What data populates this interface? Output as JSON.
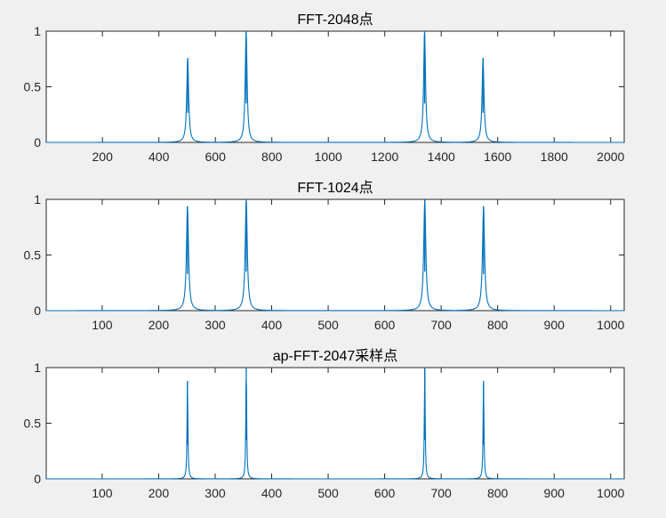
{
  "figure": {
    "background": "#f0f0f0",
    "plot_background": "#ffffff",
    "axis_color": "#262626"
  },
  "chart_data": [
    {
      "type": "line",
      "title": "FFT-2048点",
      "xlabel": "",
      "ylabel": "",
      "xlim": [
        1,
        2048
      ],
      "ylim": [
        0,
        1
      ],
      "xticks": [
        200,
        400,
        600,
        800,
        1000,
        1200,
        1400,
        1600,
        1800,
        2000
      ],
      "yticks": [
        0,
        0.5,
        1
      ],
      "ytick_labels": [
        "0",
        "0.5",
        "1"
      ],
      "grid": false,
      "legend": "none",
      "color": "#0072bd",
      "peak_width": 4,
      "peaks": [
        {
          "x": 502,
          "y": 0.76
        },
        {
          "x": 709,
          "y": 1.0
        },
        {
          "x": 1341,
          "y": 1.0
        },
        {
          "x": 1548,
          "y": 0.76
        }
      ]
    },
    {
      "type": "line",
      "title": "FFT-1024点",
      "xlabel": "",
      "ylabel": "",
      "xlim": [
        1,
        1024
      ],
      "ylim": [
        0,
        1
      ],
      "xticks": [
        100,
        200,
        300,
        400,
        500,
        600,
        700,
        800,
        900,
        1000
      ],
      "yticks": [
        0,
        0.5,
        1
      ],
      "ytick_labels": [
        "0",
        "0.5",
        "1"
      ],
      "grid": false,
      "legend": "none",
      "color": "#0072bd",
      "peak_width": 2.2,
      "peaks": [
        {
          "x": 251,
          "y": 0.94
        },
        {
          "x": 355,
          "y": 1.0
        },
        {
          "x": 671,
          "y": 1.0
        },
        {
          "x": 775,
          "y": 0.94
        }
      ]
    },
    {
      "type": "line",
      "title": "ap-FFT-2047采样点",
      "xlabel": "",
      "ylabel": "",
      "xlim": [
        1,
        1024
      ],
      "ylim": [
        0,
        1
      ],
      "xticks": [
        100,
        200,
        300,
        400,
        500,
        600,
        700,
        800,
        900,
        1000
      ],
      "yticks": [
        0,
        0.5,
        1
      ],
      "ytick_labels": [
        "0",
        "0.5",
        "1"
      ],
      "grid": false,
      "legend": "none",
      "color": "#0072bd",
      "peak_width": 0.9,
      "peaks": [
        {
          "x": 251,
          "y": 0.88
        },
        {
          "x": 355,
          "y": 1.0
        },
        {
          "x": 671,
          "y": 1.0
        },
        {
          "x": 775,
          "y": 0.88
        }
      ]
    }
  ]
}
